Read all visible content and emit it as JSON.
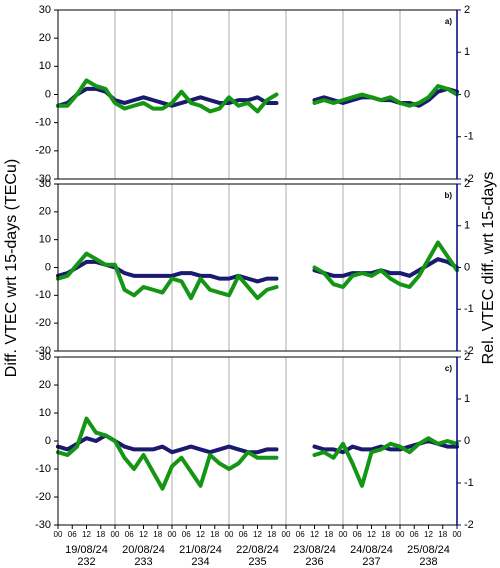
{
  "figure": {
    "ylabel": "Diff. VTEC wrt 15-days (TECu)",
    "y2label": "Rel. VTEC diff. wrt 15-days"
  },
  "chart_data": [
    {
      "type": "line",
      "panel_label": "a)",
      "xlim": [
        0,
        168
      ],
      "xticks": [
        0,
        24,
        48,
        72,
        96,
        120,
        144,
        168
      ],
      "ylim": [
        -30,
        30
      ],
      "yticks": [
        -30,
        -20,
        -10,
        0,
        10,
        20,
        30
      ],
      "y2lim": [
        -2,
        2
      ],
      "y2ticks": [
        -2,
        -1,
        0,
        1,
        2
      ],
      "y2color": "#000080",
      "x": [
        0,
        4,
        8,
        12,
        16,
        20,
        24,
        28,
        32,
        36,
        40,
        44,
        48,
        52,
        56,
        60,
        64,
        68,
        72,
        76,
        80,
        84,
        88,
        92,
        96,
        100,
        104,
        108,
        112,
        116,
        120,
        124,
        128,
        132,
        136,
        140,
        144,
        148,
        152,
        156,
        160,
        164,
        168
      ],
      "series": [
        {
          "color": "#1a1a6e",
          "values": [
            -4,
            -3,
            0,
            2,
            2,
            1,
            -2,
            -3,
            -2,
            -1,
            -2,
            -3,
            -4,
            -3,
            -2,
            -1,
            -2,
            -3,
            -3,
            -2,
            -2,
            -1,
            -3,
            -3,
            null,
            null,
            null,
            -2,
            -1,
            -2,
            -3,
            -2,
            -1,
            -1,
            -2,
            -2,
            -3,
            -3,
            -4,
            -2,
            1,
            2,
            1
          ]
        },
        {
          "color": "#149614",
          "values": [
            -4,
            -4,
            0,
            5,
            3,
            2,
            -3,
            -5,
            -4,
            -3,
            -5,
            -5,
            -3,
            1,
            -3,
            -4,
            -6,
            -5,
            -1,
            -4,
            -3,
            -6,
            -2,
            0,
            null,
            null,
            null,
            -3,
            -2,
            -3,
            -2,
            -1,
            0,
            -1,
            -2,
            -1,
            -3,
            -4,
            -3,
            -1,
            3,
            2,
            0
          ]
        }
      ]
    },
    {
      "type": "line",
      "panel_label": "b)",
      "xlim": [
        0,
        168
      ],
      "xticks": [
        0,
        24,
        48,
        72,
        96,
        120,
        144,
        168
      ],
      "ylim": [
        -30,
        30
      ],
      "yticks": [
        -30,
        -20,
        -10,
        0,
        10,
        20,
        30
      ],
      "y2lim": [
        -2,
        2
      ],
      "y2ticks": [
        -2,
        -1,
        0,
        1,
        2
      ],
      "y2color": "#000080",
      "x": [
        0,
        4,
        8,
        12,
        16,
        20,
        24,
        28,
        32,
        36,
        40,
        44,
        48,
        52,
        56,
        60,
        64,
        68,
        72,
        76,
        80,
        84,
        88,
        92,
        96,
        100,
        104,
        108,
        112,
        116,
        120,
        124,
        128,
        132,
        136,
        140,
        144,
        148,
        152,
        156,
        160,
        164,
        168
      ],
      "series": [
        {
          "color": "#1a1a6e",
          "values": [
            -3,
            -2,
            0,
            2,
            2,
            1,
            0,
            -2,
            -3,
            -3,
            -3,
            -3,
            -3,
            -2,
            -2,
            -3,
            -3,
            -4,
            -4,
            -3,
            -4,
            -5,
            -4,
            -4,
            null,
            null,
            null,
            -1,
            -2,
            -3,
            -3,
            -2,
            -2,
            -2,
            -1,
            -2,
            -2,
            -3,
            -1,
            1,
            3,
            2,
            0
          ]
        },
        {
          "color": "#149614",
          "values": [
            -4,
            -3,
            1,
            5,
            3,
            1,
            1,
            -8,
            -10,
            -7,
            -8,
            -9,
            -4,
            -5,
            -11,
            -4,
            -8,
            -9,
            -10,
            -3,
            -7,
            -11,
            -8,
            -7,
            null,
            null,
            null,
            0,
            -2,
            -6,
            -7,
            -3,
            -2,
            -3,
            -1,
            -4,
            -6,
            -7,
            -3,
            3,
            9,
            4,
            -1
          ]
        }
      ]
    },
    {
      "type": "line",
      "panel_label": "c)",
      "xlim": [
        0,
        168
      ],
      "ylim": [
        -30,
        30
      ],
      "yticks": [
        -30,
        -20,
        -10,
        0,
        10,
        20,
        30
      ],
      "y2lim": [
        -2,
        2
      ],
      "y2ticks": [
        -2,
        -1,
        0,
        1,
        2
      ],
      "y2color": "#000080",
      "xticks": [
        {
          "value": 0,
          "label": "00"
        },
        {
          "value": 6,
          "label": "06"
        },
        {
          "value": 12,
          "label": "12"
        },
        {
          "value": 18,
          "label": "18"
        },
        {
          "value": 24,
          "label": "00"
        },
        {
          "value": 30,
          "label": "06"
        },
        {
          "value": 36,
          "label": "12"
        },
        {
          "value": 42,
          "label": "18"
        },
        {
          "value": 48,
          "label": "00"
        },
        {
          "value": 54,
          "label": "06"
        },
        {
          "value": 60,
          "label": "12"
        },
        {
          "value": 66,
          "label": "18"
        },
        {
          "value": 72,
          "label": "00"
        },
        {
          "value": 78,
          "label": "06"
        },
        {
          "value": 84,
          "label": "12"
        },
        {
          "value": 90,
          "label": "18"
        },
        {
          "value": 96,
          "label": "00"
        },
        {
          "value": 102,
          "label": "06"
        },
        {
          "value": 108,
          "label": "12"
        },
        {
          "value": 114,
          "label": "18"
        },
        {
          "value": 120,
          "label": "00"
        },
        {
          "value": 126,
          "label": "06"
        },
        {
          "value": 132,
          "label": "12"
        },
        {
          "value": 138,
          "label": "18"
        },
        {
          "value": 144,
          "label": "00"
        },
        {
          "value": 150,
          "label": "06"
        },
        {
          "value": 156,
          "label": "12"
        },
        {
          "value": 162,
          "label": "18"
        },
        {
          "value": 168,
          "label": "00"
        }
      ],
      "day_dates": [
        "19/08/24",
        "20/08/24",
        "21/08/24",
        "22/08/24",
        "23/08/24",
        "24/08/24",
        "25/08/24"
      ],
      "day_numbers": [
        "232",
        "233",
        "234",
        "235",
        "236",
        "237",
        "238"
      ],
      "x": [
        0,
        4,
        8,
        12,
        16,
        20,
        24,
        28,
        32,
        36,
        40,
        44,
        48,
        52,
        56,
        60,
        64,
        68,
        72,
        76,
        80,
        84,
        88,
        92,
        96,
        100,
        104,
        108,
        112,
        116,
        120,
        124,
        128,
        132,
        136,
        140,
        144,
        148,
        152,
        156,
        160,
        164,
        168
      ],
      "series": [
        {
          "color": "#1a1a6e",
          "values": [
            -2,
            -3,
            -1,
            1,
            0,
            2,
            0,
            -2,
            -3,
            -3,
            -3,
            -2,
            -4,
            -3,
            -2,
            -3,
            -4,
            -3,
            -2,
            -3,
            -4,
            -4,
            -3,
            -3,
            null,
            null,
            null,
            -2,
            -3,
            -3,
            -4,
            -2,
            -3,
            -3,
            -2,
            -3,
            -3,
            -2,
            -1,
            0,
            -1,
            -2,
            -2
          ]
        },
        {
          "color": "#149614",
          "values": [
            -4,
            -5,
            -2,
            8,
            3,
            2,
            0,
            -6,
            -10,
            -5,
            -11,
            -17,
            -9,
            -6,
            -11,
            -16,
            -5,
            -8,
            -10,
            -8,
            -4,
            -6,
            -6,
            -6,
            null,
            null,
            null,
            -5,
            -4,
            -6,
            -1,
            -8,
            -16,
            -4,
            -3,
            -1,
            -2,
            -4,
            -1,
            1,
            -1,
            0,
            -1
          ]
        }
      ]
    }
  ]
}
